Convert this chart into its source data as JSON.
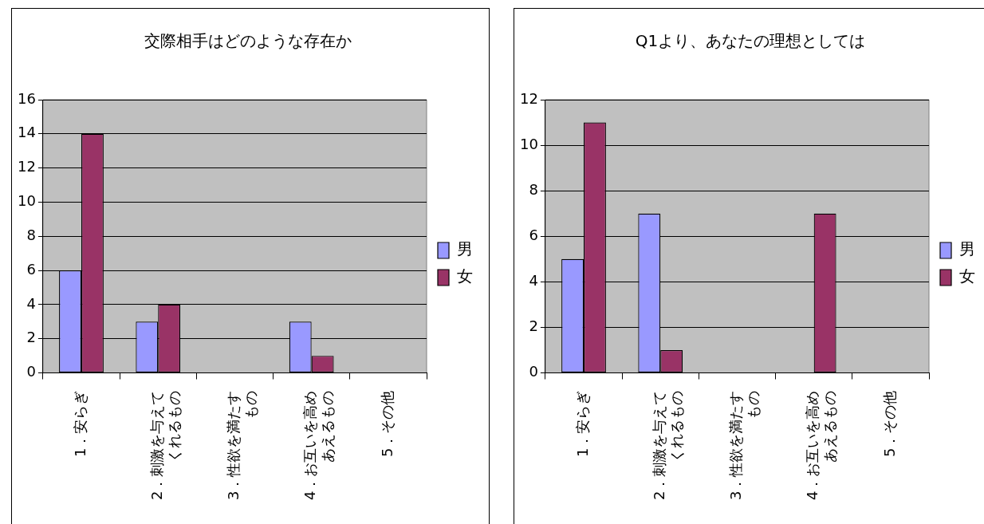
{
  "chart_data": [
    {
      "type": "bar",
      "title": "交際相手はどのような存在か",
      "categories": [
        "1．安らぎ",
        "2．刺激を与えてくれるもの",
        "3．性欲を満たすもの",
        "4．お互いを高めあえるもの",
        "5．その他"
      ],
      "series": [
        {
          "name": "男",
          "color": "#9999ff",
          "values": [
            6,
            3,
            0,
            3,
            0
          ]
        },
        {
          "name": "女",
          "color": "#993366",
          "values": [
            14,
            4,
            0,
            1,
            0
          ]
        }
      ],
      "ylim": [
        0,
        16
      ],
      "yticks": [
        0,
        2,
        4,
        6,
        8,
        10,
        12,
        14,
        16
      ],
      "grid": "y",
      "legend": "right"
    },
    {
      "type": "bar",
      "title": "Q1より、あなたの理想としては",
      "categories": [
        "1．安らぎ",
        "2．刺激を与えてくれるもの",
        "3．性欲を満たすもの",
        "4．お互いを高めあえるもの",
        "5．その他"
      ],
      "series": [
        {
          "name": "男",
          "color": "#9999ff",
          "values": [
            5,
            7,
            0,
            0,
            0
          ]
        },
        {
          "name": "女",
          "color": "#993366",
          "values": [
            11,
            1,
            0,
            7,
            0
          ]
        }
      ],
      "ylim": [
        0,
        12
      ],
      "yticks": [
        0,
        2,
        4,
        6,
        8,
        10,
        12
      ],
      "grid": "y",
      "legend": "right"
    }
  ]
}
